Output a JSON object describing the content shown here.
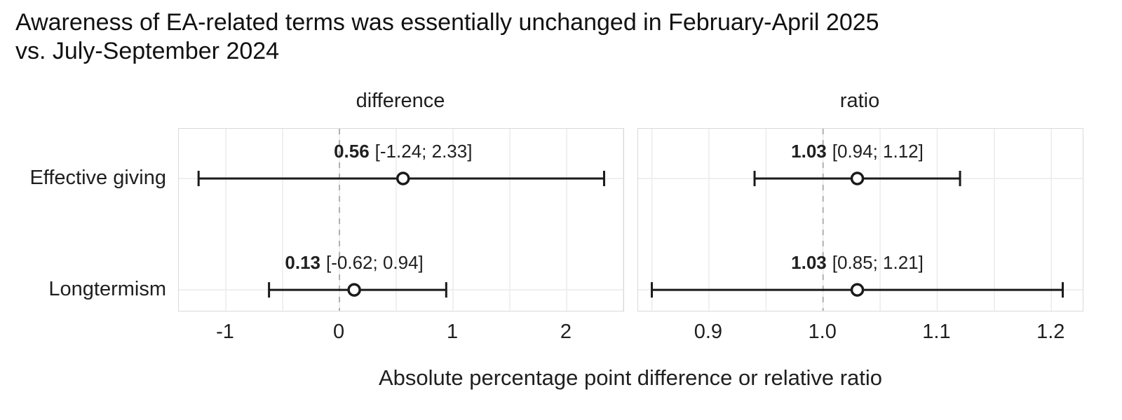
{
  "title": {
    "line1": "Awareness of EA-related terms was essentially unchanged in February-April 2025",
    "line2": "vs. July-September 2024"
  },
  "caption": "Absolute percentage point difference or relative ratio",
  "colors": {
    "text": "#1f1f1f",
    "title_text": "#111111",
    "gridline": "#ececec",
    "panel_border": "#d9d9d9",
    "ref_line": "#b0b0b0",
    "errorbar": "#1a1a1a",
    "marker_fill": "#ffffff",
    "background": "#ffffff"
  },
  "chart_data": [
    {
      "type": "scatter",
      "subtype": "forest-errorbar",
      "panel_title": "difference",
      "categories": [
        "Effective giving",
        "Longtermism"
      ],
      "xlim": [
        -1.414,
        2.5
      ],
      "ticks": [
        {
          "v": -1,
          "label": "-1"
        },
        {
          "v": 0,
          "label": "0"
        },
        {
          "v": 1,
          "label": "1"
        },
        {
          "v": 2,
          "label": "2"
        }
      ],
      "minor_step": 0.5,
      "ref_line": 0,
      "grid": true,
      "points": [
        {
          "category": "Effective giving",
          "estimate": 0.56,
          "ci_low": -1.24,
          "ci_high": 2.33,
          "estimate_text": "0.56",
          "ci_text": "[-1.24; 2.33]"
        },
        {
          "category": "Longtermism",
          "estimate": 0.13,
          "ci_low": -0.62,
          "ci_high": 0.94,
          "estimate_text": "0.13",
          "ci_text": "[-0.62; 0.94]"
        }
      ]
    },
    {
      "type": "scatter",
      "subtype": "forest-errorbar",
      "panel_title": "ratio",
      "categories": [
        "Effective giving",
        "Longtermism"
      ],
      "xlim": [
        0.838,
        1.2275
      ],
      "ticks": [
        {
          "v": 0.9,
          "label": "0.9"
        },
        {
          "v": 1.0,
          "label": "1.0"
        },
        {
          "v": 1.1,
          "label": "1.1"
        },
        {
          "v": 1.2,
          "label": "1.2"
        }
      ],
      "minor_step": 0.05,
      "ref_line": 1.0,
      "grid": true,
      "points": [
        {
          "category": "Effective giving",
          "estimate": 1.03,
          "ci_low": 0.94,
          "ci_high": 1.12,
          "estimate_text": "1.03",
          "ci_text": "[0.94; 1.12]"
        },
        {
          "category": "Longtermism",
          "estimate": 1.03,
          "ci_low": 0.85,
          "ci_high": 1.21,
          "estimate_text": "1.03",
          "ci_text": "[0.85; 1.21]"
        }
      ]
    }
  ]
}
